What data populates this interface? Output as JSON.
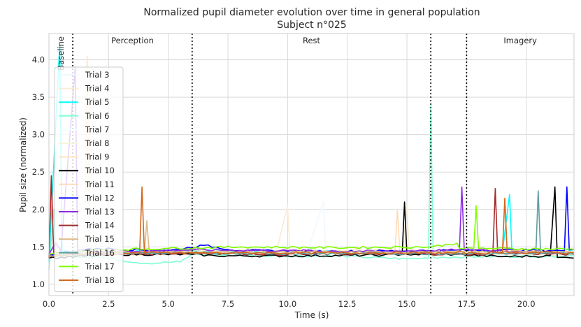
{
  "chart_data": {
    "type": "line",
    "title": "Normalized pupil diameter evolution over time in general population",
    "subtitle": "Subject n°025",
    "xlabel": "Time (s)",
    "ylabel": "Pupil size (normalized)",
    "xlim": [
      0,
      22
    ],
    "ylim": [
      0.85,
      4.35
    ],
    "xticks": [
      0.0,
      2.5,
      5.0,
      7.5,
      10.0,
      12.5,
      15.0,
      17.5,
      20.0
    ],
    "xtick_labels": [
      "0.0",
      "2.5",
      "5.0",
      "7.5",
      "10.0",
      "12.5",
      "15.0",
      "17.5",
      "20.0"
    ],
    "yticks": [
      1.0,
      1.5,
      2.0,
      2.5,
      3.0,
      3.5,
      4.0
    ],
    "ytick_labels": [
      "1.0",
      "1.5",
      "2.0",
      "2.5",
      "3.0",
      "3.5",
      "4.0"
    ],
    "grid": true,
    "legend_position": "left",
    "phase_boundaries": [
      1.0,
      6.0,
      16.0,
      17.5
    ],
    "phases": [
      {
        "label": "Baseline",
        "x": 0.5,
        "rotated": true
      },
      {
        "label": "Perception",
        "x": 3.5,
        "rotated": false
      },
      {
        "label": "Rest",
        "x": 11.0,
        "rotated": false
      },
      {
        "label": "Imagery",
        "x": 19.75,
        "rotated": false
      }
    ],
    "series": [
      {
        "name": "Trial 3",
        "color": "#f0f8ff",
        "base": 1.42,
        "points": [
          [
            0,
            1.3
          ],
          [
            0.3,
            1.42
          ],
          [
            2,
            1.43
          ],
          [
            6,
            1.44
          ],
          [
            9,
            1.43
          ],
          [
            10.8,
            1.4
          ],
          [
            11.5,
            2.1
          ],
          [
            11.6,
            1.42
          ],
          [
            14,
            1.42
          ],
          [
            16,
            1.41
          ],
          [
            18,
            1.42
          ],
          [
            20,
            1.41
          ],
          [
            22,
            1.4
          ]
        ]
      },
      {
        "name": "Trial 4",
        "color": "#faebd7",
        "base": 1.4,
        "points": [
          [
            0,
            1.35
          ],
          [
            0.4,
            1.4
          ],
          [
            1.5,
            1.4
          ],
          [
            4,
            1.39
          ],
          [
            6,
            1.41
          ],
          [
            9.5,
            1.4
          ],
          [
            10.0,
            2.05
          ],
          [
            10.1,
            1.4
          ],
          [
            12,
            1.4
          ],
          [
            14.8,
            1.42
          ],
          [
            15.0,
            2.05
          ],
          [
            15.1,
            1.42
          ],
          [
            18,
            1.41
          ],
          [
            22,
            1.4
          ]
        ]
      },
      {
        "name": "Trial 5",
        "color": "#00ffff",
        "base": 1.44,
        "points": [
          [
            0,
            1.3
          ],
          [
            0.45,
            4.2
          ],
          [
            0.55,
            1.44
          ],
          [
            3,
            1.44
          ],
          [
            6,
            1.45
          ],
          [
            10,
            1.44
          ],
          [
            14,
            1.44
          ],
          [
            16,
            1.44
          ],
          [
            19,
            1.43
          ],
          [
            19.3,
            2.2
          ],
          [
            19.4,
            1.43
          ],
          [
            21,
            1.44
          ],
          [
            22,
            1.45
          ]
        ]
      },
      {
        "name": "Trial 6",
        "color": "#7fffd4",
        "base": 1.37,
        "points": [
          [
            0,
            1.2
          ],
          [
            0.2,
            2.0
          ],
          [
            0.3,
            1.37
          ],
          [
            2,
            1.37
          ],
          [
            4,
            1.28
          ],
          [
            5.5,
            1.3
          ],
          [
            6,
            1.4
          ],
          [
            9,
            1.38
          ],
          [
            12,
            1.38
          ],
          [
            15,
            1.34
          ],
          [
            15.9,
            1.35
          ],
          [
            16.0,
            3.4
          ],
          [
            16.1,
            1.36
          ],
          [
            18,
            1.37
          ],
          [
            22,
            1.38
          ]
        ]
      },
      {
        "name": "Trial 7",
        "color": "#f0ffff",
        "base": 1.41,
        "points": [
          [
            0,
            1.38
          ],
          [
            0.5,
            1.41
          ],
          [
            4,
            1.41
          ],
          [
            8,
            1.42
          ],
          [
            12,
            1.41
          ],
          [
            16,
            1.41
          ],
          [
            22,
            1.42
          ]
        ]
      },
      {
        "name": "Trial 8",
        "color": "#f5f5dc",
        "base": 1.43,
        "points": [
          [
            0,
            1.35
          ],
          [
            0.6,
            1.43
          ],
          [
            5,
            1.44
          ],
          [
            10,
            1.43
          ],
          [
            15,
            1.44
          ],
          [
            18,
            1.43
          ],
          [
            22,
            1.44
          ]
        ]
      },
      {
        "name": "Trial 9",
        "color": "#ffe4c4",
        "base": 1.45,
        "points": [
          [
            0,
            1.4
          ],
          [
            1.5,
            1.45
          ],
          [
            1.6,
            4.05
          ],
          [
            1.7,
            1.45
          ],
          [
            4,
            1.44
          ],
          [
            8,
            1.46
          ],
          [
            12,
            1.45
          ],
          [
            16,
            1.46
          ],
          [
            22,
            1.45
          ]
        ]
      },
      {
        "name": "Trial 10",
        "color": "#000000",
        "base": 1.38,
        "points": [
          [
            0,
            1.35
          ],
          [
            3,
            1.4
          ],
          [
            6,
            1.4
          ],
          [
            7,
            1.38
          ],
          [
            10,
            1.38
          ],
          [
            14,
            1.39
          ],
          [
            14.8,
            1.4
          ],
          [
            14.9,
            2.1
          ],
          [
            15.0,
            1.4
          ],
          [
            17,
            1.4
          ],
          [
            19,
            1.37
          ],
          [
            21,
            1.38
          ],
          [
            21.2,
            2.3
          ],
          [
            21.3,
            1.36
          ],
          [
            22,
            1.35
          ]
        ]
      },
      {
        "name": "Trial 11",
        "color": "#ffdab9",
        "base": 1.42,
        "points": [
          [
            0,
            1.38
          ],
          [
            1,
            1.42
          ],
          [
            5,
            1.43
          ],
          [
            10,
            1.42
          ],
          [
            14.5,
            1.43
          ],
          [
            14.6,
            2.0
          ],
          [
            14.7,
            1.43
          ],
          [
            18,
            1.42
          ],
          [
            22,
            1.43
          ]
        ]
      },
      {
        "name": "Trial 12",
        "color": "#0000ff",
        "base": 1.45,
        "points": [
          [
            0,
            1.4
          ],
          [
            2,
            1.48
          ],
          [
            5,
            1.45
          ],
          [
            6.5,
            1.52
          ],
          [
            8,
            1.45
          ],
          [
            12,
            1.44
          ],
          [
            16,
            1.45
          ],
          [
            19,
            1.46
          ],
          [
            21.6,
            1.45
          ],
          [
            21.7,
            2.3
          ],
          [
            21.8,
            1.46
          ],
          [
            22,
            1.47
          ]
        ]
      },
      {
        "name": "Trial 13",
        "color": "#8a2be2",
        "base": 1.44,
        "points": [
          [
            0,
            1.4
          ],
          [
            0.3,
            1.55
          ],
          [
            0.5,
            1.44
          ],
          [
            1.1,
            3.9
          ],
          [
            1.2,
            1.45
          ],
          [
            3,
            1.44
          ],
          [
            6,
            1.46
          ],
          [
            10,
            1.45
          ],
          [
            14,
            1.44
          ],
          [
            17.2,
            1.46
          ],
          [
            17.3,
            2.3
          ],
          [
            17.4,
            1.46
          ],
          [
            20,
            1.44
          ],
          [
            22,
            1.42
          ]
        ]
      },
      {
        "name": "Trial 14",
        "color": "#a52a2a",
        "base": 1.4,
        "points": [
          [
            0,
            1.35
          ],
          [
            0.1,
            2.45
          ],
          [
            0.2,
            1.4
          ],
          [
            3,
            1.4
          ],
          [
            6,
            1.42
          ],
          [
            10,
            1.4
          ],
          [
            14,
            1.41
          ],
          [
            18,
            1.4
          ],
          [
            18.6,
            1.4
          ],
          [
            18.7,
            2.28
          ],
          [
            18.8,
            1.42
          ],
          [
            22,
            1.4
          ]
        ]
      },
      {
        "name": "Trial 15",
        "color": "#deb887",
        "base": 1.43,
        "points": [
          [
            0,
            1.4
          ],
          [
            2,
            1.43
          ],
          [
            4.0,
            1.43
          ],
          [
            4.1,
            1.85
          ],
          [
            4.2,
            1.43
          ],
          [
            8,
            1.43
          ],
          [
            12,
            1.43
          ],
          [
            16,
            1.43
          ],
          [
            20,
            1.44
          ],
          [
            22,
            1.43
          ]
        ]
      },
      {
        "name": "Trial 16",
        "color": "#5f9ea0",
        "base": 1.41,
        "points": [
          [
            0,
            1.38
          ],
          [
            2,
            1.41
          ],
          [
            6,
            1.42
          ],
          [
            10,
            1.41
          ],
          [
            14,
            1.41
          ],
          [
            18,
            1.41
          ],
          [
            20.4,
            1.41
          ],
          [
            20.5,
            2.25
          ],
          [
            20.6,
            1.41
          ],
          [
            22,
            1.41
          ]
        ]
      },
      {
        "name": "Trial 17",
        "color": "#7fff00",
        "base": 1.48,
        "points": [
          [
            0,
            1.4
          ],
          [
            2,
            1.46
          ],
          [
            5,
            1.48
          ],
          [
            8,
            1.5
          ],
          [
            12,
            1.49
          ],
          [
            16,
            1.5
          ],
          [
            17.1,
            1.55
          ],
          [
            17.2,
            1.48
          ],
          [
            17.8,
            1.48
          ],
          [
            17.9,
            2.05
          ],
          [
            18.0,
            1.48
          ],
          [
            22,
            1.47
          ]
        ]
      },
      {
        "name": "Trial 18",
        "color": "#d2691e",
        "base": 1.42,
        "points": [
          [
            0,
            1.38
          ],
          [
            2,
            1.42
          ],
          [
            3.8,
            1.42
          ],
          [
            3.9,
            2.3
          ],
          [
            4.0,
            1.42
          ],
          [
            8,
            1.42
          ],
          [
            12,
            1.42
          ],
          [
            16,
            1.42
          ],
          [
            19,
            1.42
          ],
          [
            19.1,
            2.15
          ],
          [
            19.2,
            1.43
          ],
          [
            22,
            1.42
          ]
        ]
      }
    ]
  }
}
